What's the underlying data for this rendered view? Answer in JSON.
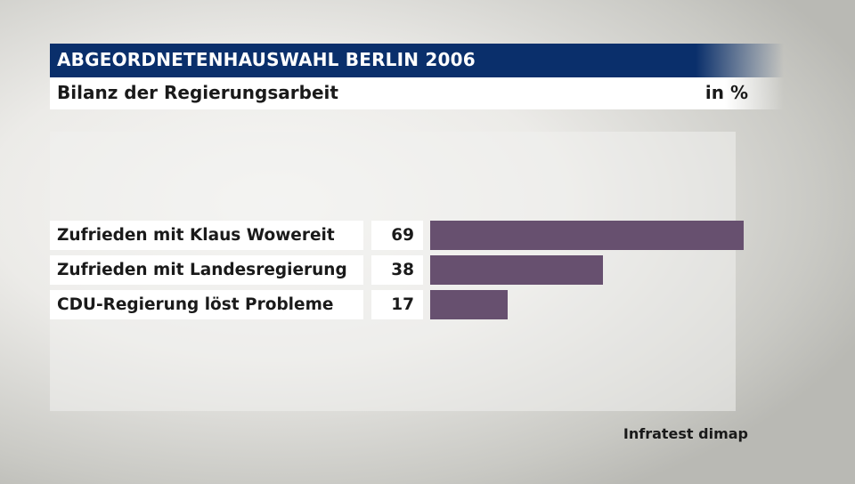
{
  "header": {
    "title": "ABGEORDNETENHAUSWAHL BERLIN 2006",
    "subtitle": "Bilanz der Regierungsarbeit",
    "unit": "in %"
  },
  "colors": {
    "header_bg": "#0a2f6b",
    "bar": "#67506f"
  },
  "chart_data": {
    "type": "bar",
    "orientation": "horizontal",
    "title": "Bilanz der Regierungsarbeit",
    "unit": "in %",
    "categories": [
      "Zufrieden mit Klaus Wowereit",
      "Zufrieden mit Landesregierung",
      "CDU-Regierung löst Probleme"
    ],
    "values": [
      69,
      38,
      17
    ],
    "xlim": [
      0,
      69
    ],
    "grid": false,
    "legend": "none"
  },
  "source": "Infratest dimap"
}
